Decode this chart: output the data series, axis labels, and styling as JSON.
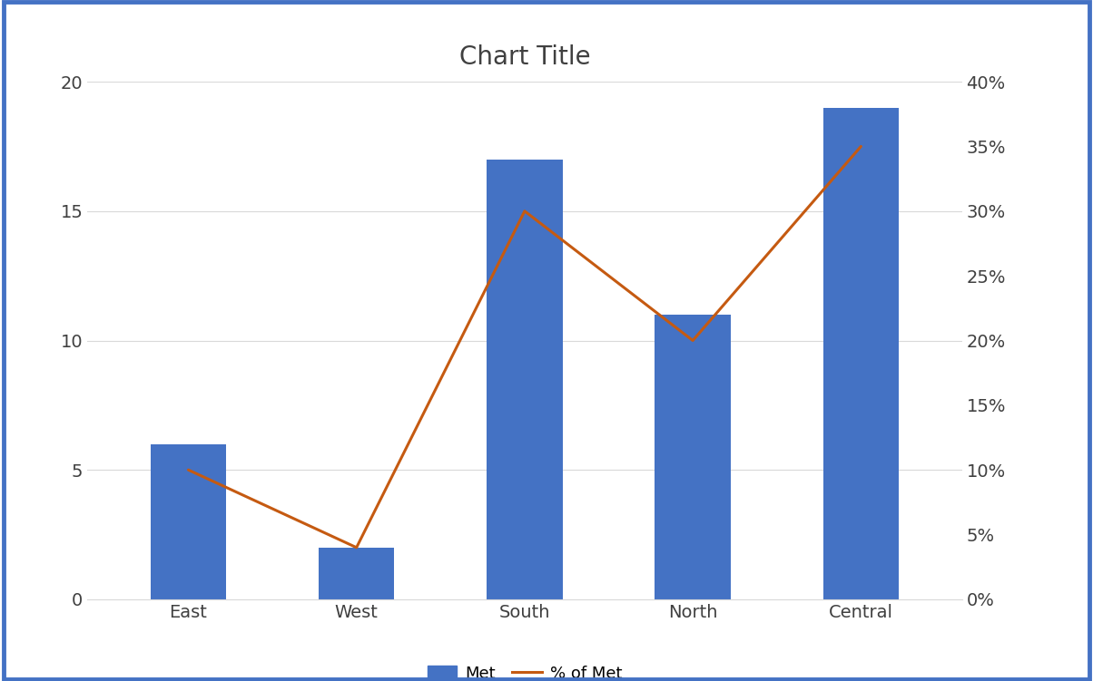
{
  "categories": [
    "East",
    "West",
    "South",
    "North",
    "Central"
  ],
  "bar_values": [
    6,
    2,
    17,
    11,
    19
  ],
  "line_values": [
    0.1,
    0.04,
    0.3,
    0.2,
    0.35
  ],
  "bar_color": "#4472C4",
  "line_color": "#C55A11",
  "title": "Chart Title",
  "title_fontsize": 20,
  "bar_label": "Met",
  "line_label": "% of Met",
  "left_ylim": [
    0,
    20
  ],
  "left_yticks": [
    0,
    5,
    10,
    15,
    20
  ],
  "right_ylim": [
    0,
    0.4
  ],
  "right_yticks": [
    0.0,
    0.05,
    0.1,
    0.15,
    0.2,
    0.25,
    0.3,
    0.35,
    0.4
  ],
  "background_color": "#ffffff",
  "border_color": "#4472C4",
  "grid_color": "#d9d9d9",
  "tick_label_fontsize": 14,
  "legend_fontsize": 13,
  "bar_width": 0.45
}
